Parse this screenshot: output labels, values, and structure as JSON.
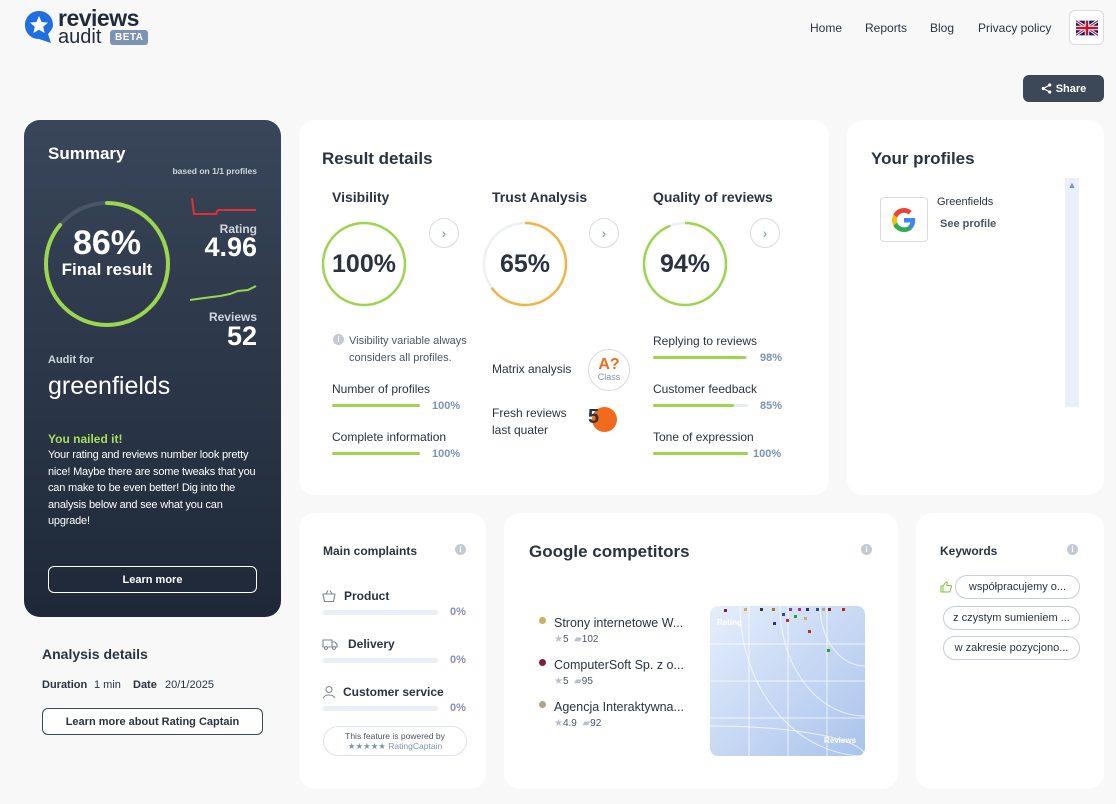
{
  "header": {
    "brand_line1": "reviews",
    "brand_line2": "audit",
    "beta": "BETA",
    "nav": [
      "Home",
      "Reports",
      "Blog",
      "Privacy policy"
    ],
    "share_label": "Share"
  },
  "summary": {
    "title": "Summary",
    "based_on": "based on 1/1 profiles",
    "final_pct": "86%",
    "final_label": "Final result",
    "final_progress": 0.86,
    "rating_label": "Rating",
    "rating_value": "4.96",
    "reviews_label": "Reviews",
    "reviews_value": "52",
    "audit_for_label": "Audit for",
    "audit_name": "greenfields",
    "nailed": "You nailed it!",
    "message": "Your rating and reviews number look pretty nice! Maybe there are some tweaks that you can make to be even better! Dig into the analysis below and see what you can upgrade!",
    "learn_more": "Learn more"
  },
  "analysis": {
    "title": "Analysis details",
    "duration_label": "Duration",
    "duration_value": "1 min",
    "date_label": "Date",
    "date_value": "20/1/2025",
    "button": "Learn more about Rating Captain"
  },
  "result": {
    "title": "Result details",
    "visibility": {
      "title": "Visibility",
      "value": "100%",
      "progress": 1.0
    },
    "trust": {
      "title": "Trust Analysis",
      "value": "65%",
      "progress": 0.65
    },
    "quality": {
      "title": "Quality of reviews",
      "value": "94%",
      "progress": 0.94
    },
    "visibility_note": "Visibility variable always considers all profiles.",
    "number_profiles": {
      "label": "Number of profiles",
      "value": "100%",
      "progress": 1.0
    },
    "complete_info": {
      "label": "Complete information",
      "value": "100%",
      "progress": 1.0
    },
    "matrix_label": "Matrix analysis",
    "matrix_grade": "A?",
    "matrix_class": "Class",
    "fresh_label_1": "Fresh reviews",
    "fresh_label_2": "last quater",
    "fresh_value": "5",
    "replying": {
      "label": "Replying to reviews",
      "value": "98%",
      "progress": 0.98
    },
    "feedback": {
      "label": "Customer feedback",
      "value": "85%",
      "progress": 0.85
    },
    "tone": {
      "label": "Tone of expression",
      "value": "100%",
      "progress": 1.0
    }
  },
  "profiles": {
    "title": "Your profiles",
    "items": [
      {
        "name": "Greenfields",
        "link": "See profile"
      }
    ]
  },
  "complaints": {
    "title": "Main complaints",
    "items": [
      {
        "label": "Product",
        "value": "0%"
      },
      {
        "label": "Delivery",
        "value": "0%"
      },
      {
        "label": "Customer service",
        "value": "0%"
      }
    ],
    "powered_line1": "This feature is powered by",
    "powered_line2": "RatingCaptain"
  },
  "competitors": {
    "title": "Google competitors",
    "items": [
      {
        "name": "Strony internetowe W...",
        "rating": "5",
        "reviews": "102",
        "color": "#c8b35a"
      },
      {
        "name": "ComputerSoft Sp. z o...",
        "rating": "5",
        "reviews": "95",
        "color": "#7a1f3d"
      },
      {
        "name": "Agencja Interaktywna...",
        "rating": "4.9",
        "reviews": "92",
        "color": "#b0a58a"
      }
    ],
    "chart_rating_label": "Rating",
    "chart_reviews_label": "Reviews"
  },
  "keywords": {
    "title": "Keywords",
    "items": [
      "współpracujemy o...",
      "z czystym sumieniem ...",
      "w zakresie pozycjono..."
    ]
  },
  "colors": {
    "accent_green": "#9cd64e",
    "trust_orange": "#f3b24a",
    "fresh_orange": "#f26a1b",
    "rating_red": "#e0312f",
    "dark_navy": "#1e2838"
  }
}
